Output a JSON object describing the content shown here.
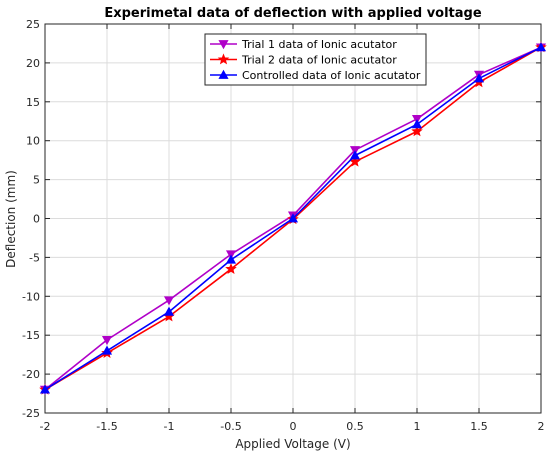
{
  "chart_data": {
    "type": "line",
    "title": "Experimetal data of deflection with applied voltage",
    "xlabel": "Applied Voltage (V)",
    "ylabel": "Deflection (mm)",
    "xlim": [
      -2,
      2
    ],
    "ylim": [
      -25,
      25
    ],
    "xticks": [
      -2,
      -1.5,
      -1,
      -0.5,
      0,
      0.5,
      1,
      1.5,
      2
    ],
    "yticks": [
      -25,
      -20,
      -15,
      -10,
      -5,
      0,
      5,
      10,
      15,
      20,
      25
    ],
    "xtick_labels": [
      "-2",
      "-1.5",
      "-1",
      "-0.5",
      "0",
      "0.5",
      "1",
      "1.5",
      "2"
    ],
    "ytick_labels": [
      "-25",
      "-20",
      "-15",
      "-10",
      "-5",
      "0",
      "5",
      "10",
      "15",
      "20",
      "25"
    ],
    "grid": true,
    "legend_position": "top-right",
    "x": [
      -2,
      -1.5,
      -1,
      -0.5,
      0,
      0.5,
      1,
      1.5,
      2
    ],
    "series": [
      {
        "name": "Trial 1 data of Ionic acutator",
        "color": "#b000c8",
        "marker": "triangle-down",
        "values": [
          -22,
          -15.6,
          -10.5,
          -4.6,
          0.4,
          8.8,
          12.8,
          18.5,
          22
        ]
      },
      {
        "name": "Trial 2 data of Ionic acutator",
        "color": "#ff0000",
        "marker": "star",
        "values": [
          -22,
          -17.3,
          -12.6,
          -6.5,
          -0.1,
          7.3,
          11.2,
          17.5,
          22
        ]
      },
      {
        "name": "Controlled data of Ionic acutator",
        "color": "#0000ff",
        "marker": "triangle-up",
        "values": [
          -22,
          -17,
          -12,
          -5.3,
          0,
          8.1,
          12.1,
          18,
          22
        ]
      }
    ]
  }
}
